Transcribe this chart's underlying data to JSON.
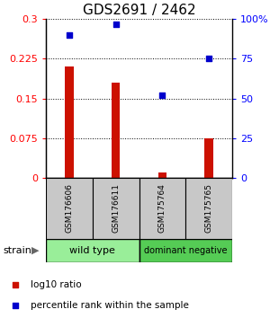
{
  "title": "GDS2691 / 2462",
  "samples": [
    "GSM176606",
    "GSM176611",
    "GSM175764",
    "GSM175765"
  ],
  "log10_ratio": [
    0.21,
    0.18,
    0.01,
    0.075
  ],
  "percentile_rank": [
    90,
    97,
    52,
    75
  ],
  "bar_color": "#CC1100",
  "scatter_color": "#0000CC",
  "left_yticks": [
    0,
    0.075,
    0.15,
    0.225,
    0.3
  ],
  "right_yticks": [
    0,
    25,
    50,
    75,
    100
  ],
  "left_ylim": [
    0,
    0.3
  ],
  "right_ylim": [
    0,
    100
  ],
  "legend_red_label": "log10 ratio",
  "legend_blue_label": "percentile rank within the sample",
  "title_fontsize": 11,
  "tick_fontsize": 8,
  "wt_color": "#99EE99",
  "dn_color": "#55CC55",
  "sample_box_color": "#C8C8C8"
}
